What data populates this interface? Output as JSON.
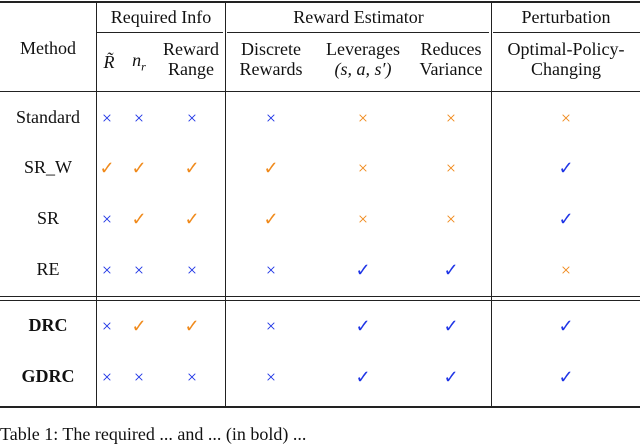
{
  "table": {
    "group_headers": {
      "required_info": "Required Info",
      "reward_estimator": "Reward Estimator",
      "perturbation": "Perturbation"
    },
    "column_headers": {
      "method": "Method",
      "r_tilde": "R̃",
      "n_r": "n",
      "n_r_sub": "r",
      "reward_range_l1": "Reward",
      "reward_range_l2": "Range",
      "discrete_l1": "Discrete",
      "discrete_l2": "Rewards",
      "leverages_l1": "Leverages",
      "leverages_l2": "(s, a, s′)",
      "reduces_l1": "Reduces",
      "reduces_l2": "Variance",
      "optimal_l1": "Optimal-Policy-",
      "optimal_l2": "Changing"
    },
    "symbols": {
      "check": "✓",
      "cross": "×"
    },
    "colors": {
      "blue": "#1f35e6",
      "orange": "#f08a1c"
    },
    "rows": [
      {
        "method": "Standard",
        "bold": false,
        "marks": [
          "cross-blue",
          "cross-blue",
          "cross-blue",
          "cross-blue",
          "cross-orange",
          "cross-orange",
          "cross-orange"
        ]
      },
      {
        "method": "SR_W",
        "bold": false,
        "marks": [
          "check-orange",
          "check-orange",
          "check-orange",
          "check-orange",
          "cross-orange",
          "cross-orange",
          "check-blue"
        ]
      },
      {
        "method": "SR",
        "bold": false,
        "marks": [
          "cross-blue",
          "check-orange",
          "check-orange",
          "check-orange",
          "cross-orange",
          "cross-orange",
          "check-blue"
        ]
      },
      {
        "method": "RE",
        "bold": false,
        "marks": [
          "cross-blue",
          "cross-blue",
          "cross-blue",
          "cross-blue",
          "check-blue",
          "check-blue",
          "cross-orange"
        ]
      },
      {
        "method": "DRC",
        "bold": true,
        "marks": [
          "cross-blue",
          "check-orange",
          "check-orange",
          "cross-blue",
          "check-blue",
          "check-blue",
          "check-blue"
        ]
      },
      {
        "method": "GDRC",
        "bold": true,
        "marks": [
          "cross-blue",
          "cross-blue",
          "cross-blue",
          "cross-blue",
          "check-blue",
          "check-blue",
          "check-blue"
        ]
      }
    ]
  },
  "caption": "Table 1: The required ... and ... (in bold) ..."
}
